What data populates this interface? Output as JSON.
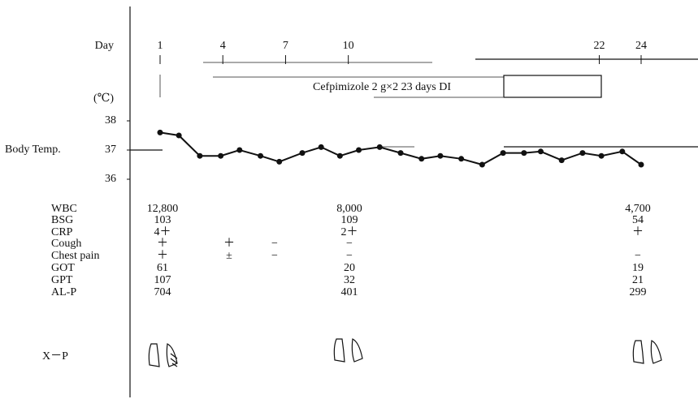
{
  "chart_data": {
    "type": "line",
    "x_label": "Day",
    "y_label": "Body Temp.",
    "unit_label": "(℃)",
    "annotation": "Cefpimizole 2 g×2  23 days DI",
    "x": [
      1,
      1.9,
      2.9,
      3.9,
      4.8,
      5.8,
      6.7,
      7.8,
      8.7,
      9.6,
      10.5,
      11.5,
      12.5,
      13.5,
      14.4,
      15.4,
      16.4,
      17.4,
      18.4,
      19.2,
      20.2,
      21.2,
      22.1,
      23.1,
      24
    ],
    "values": [
      37.6,
      37.5,
      36.8,
      36.8,
      37.0,
      36.8,
      36.6,
      36.9,
      37.1,
      36.8,
      37.0,
      37.1,
      36.9,
      36.7,
      36.8,
      36.7,
      36.5,
      36.9,
      36.9,
      36.95,
      36.65,
      36.9,
      36.8,
      36.95,
      36.5
    ],
    "color": "#111111",
    "xlim": [
      1,
      24
    ],
    "xticks": [
      1,
      4,
      7,
      10,
      22,
      24
    ],
    "ylim": [
      36,
      38
    ],
    "yticks": [
      36,
      37,
      38
    ]
  },
  "labs": {
    "rows": [
      {
        "label": "WBC",
        "cells": [
          "12,800",
          null,
          null,
          "8,000",
          "4,700"
        ]
      },
      {
        "label": "BSG",
        "cells": [
          103,
          null,
          null,
          109,
          54
        ]
      },
      {
        "label": "CRP",
        "cells": [
          "4＋",
          null,
          null,
          "2＋",
          "＋"
        ]
      },
      {
        "label": "Cough",
        "cells": [
          "＋",
          "＋",
          "−",
          "−",
          null
        ]
      },
      {
        "label": "Chest pain",
        "cells": [
          "＋",
          "±",
          "−",
          "−",
          "−"
        ]
      },
      {
        "label": "GOT",
        "cells": [
          61,
          null,
          null,
          20,
          19
        ]
      },
      {
        "label": "GPT",
        "cells": [
          107,
          null,
          null,
          32,
          21
        ]
      },
      {
        "label": "AL-P",
        "cells": [
          704,
          null,
          null,
          401,
          299
        ]
      }
    ],
    "xray_label": "X－P"
  }
}
